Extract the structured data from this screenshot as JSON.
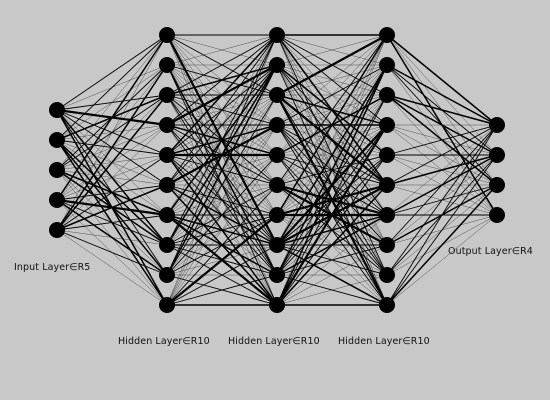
{
  "diagram": {
    "type": "neural-network",
    "background_color": "#c8c8c8",
    "node_color": "#000000",
    "edge_color": "#000000",
    "layers": [
      {
        "id": "input",
        "label": "Input Layer∈R5",
        "size": 5
      },
      {
        "id": "h1",
        "label": "Hidden Layer∈R10",
        "size": 10
      },
      {
        "id": "h2",
        "label": "Hidden Layer∈R10",
        "size": 10
      },
      {
        "id": "h3",
        "label": "Hidden Layer∈R10",
        "size": 10
      },
      {
        "id": "output",
        "label": "Output Layer∈R4",
        "size": 4
      }
    ],
    "connectivity": "fully-connected"
  }
}
